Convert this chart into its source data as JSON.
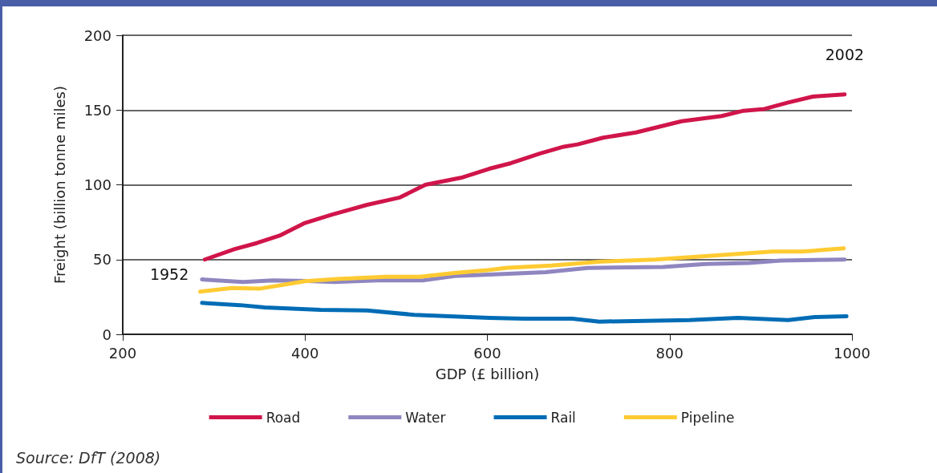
{
  "chart_data": {
    "type": "line",
    "xlabel": "GDP (£ billion)",
    "ylabel": "Freight (billion tonne miles)",
    "xlim": [
      200,
      1000
    ],
    "xticks": [
      200,
      400,
      600,
      800,
      1000
    ],
    "ylim": [
      0,
      200
    ],
    "yticks": [
      0,
      50,
      100,
      150,
      200
    ],
    "grid": "y",
    "legend": "bottom",
    "marker": "none",
    "line_style": "solid",
    "series": [
      {
        "name": "Road",
        "color": "#d0154a",
        "x": [
          290,
          323,
          347,
          372,
          400,
          429,
          468,
          504,
          532,
          573,
          602,
          626,
          658,
          684,
          699,
          727,
          763,
          813,
          857,
          881,
          904,
          930,
          957,
          992
        ],
        "values": [
          50,
          57,
          61,
          66,
          74.5,
          80,
          86.6,
          91.5,
          100,
          105,
          110.7,
          114.5,
          121,
          125.5,
          127,
          131.5,
          135,
          142.5,
          146,
          149.5,
          150.7,
          155,
          159,
          160.5
        ]
      },
      {
        "name": "Water",
        "color": "#8f86c0",
        "x": [
          287,
          332,
          365,
          402,
          432,
          479,
          529,
          564,
          602,
          664,
          710,
          793,
          840,
          887,
          922,
          992
        ],
        "values": [
          36.7,
          35,
          36,
          35.6,
          35,
          36,
          36,
          39,
          40,
          41.6,
          44.4,
          45,
          47,
          47.7,
          49.3,
          50
        ]
      },
      {
        "name": "Rail",
        "color": "#006cb5",
        "x": [
          287,
          329,
          356,
          417,
          468,
          520,
          602,
          640,
          693,
          723,
          822,
          875,
          930,
          959,
          994
        ],
        "values": [
          21,
          19.5,
          18,
          16.4,
          16,
          13,
          11,
          10.5,
          10.5,
          8.5,
          9.5,
          11,
          9.5,
          11.5,
          12
        ]
      },
      {
        "name": "Pipeline",
        "color": "#ffcb32",
        "x": [
          285,
          320,
          350,
          400,
          435,
          488,
          526,
          564,
          602,
          622,
          670,
          725,
          784,
          881,
          913,
          945,
          991
        ],
        "values": [
          28.5,
          31,
          30.5,
          35.5,
          37,
          38.5,
          38.5,
          41,
          43,
          44.5,
          46,
          48.7,
          50,
          54,
          55.3,
          55.3,
          57.5
        ]
      }
    ],
    "annotations": [
      {
        "text": "1952",
        "x": 290,
        "y": 50
      },
      {
        "text": "2002",
        "x": 992,
        "y": 160.5
      },
      "Source: DfT (2008)"
    ]
  }
}
